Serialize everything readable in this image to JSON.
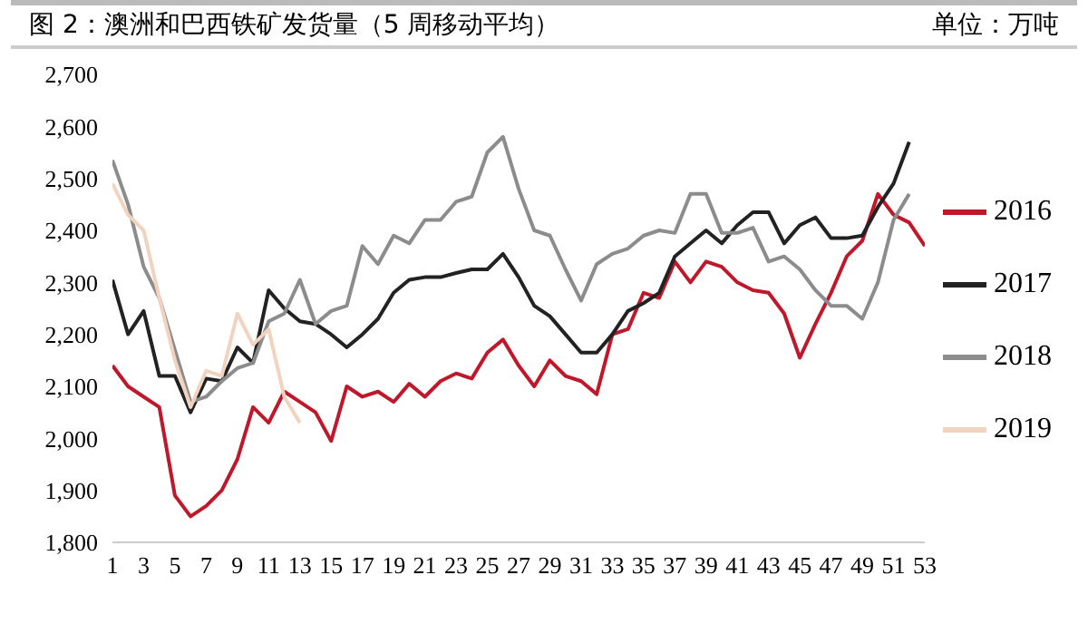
{
  "chart_data": {
    "type": "line",
    "title": "图 2：澳洲和巴西铁矿发货量（5 周移动平均）",
    "annotations": [
      "单位：万吨"
    ],
    "x": [
      1,
      2,
      3,
      4,
      5,
      6,
      7,
      8,
      9,
      10,
      11,
      12,
      13,
      14,
      15,
      16,
      17,
      18,
      19,
      20,
      21,
      22,
      23,
      24,
      25,
      26,
      27,
      28,
      29,
      30,
      31,
      32,
      33,
      34,
      35,
      36,
      37,
      38,
      39,
      40,
      41,
      42,
      43,
      44,
      45,
      46,
      47,
      48,
      49,
      50,
      51,
      52,
      53
    ],
    "xlim": [
      1,
      53
    ],
    "xticks": [
      1,
      3,
      5,
      7,
      9,
      11,
      13,
      15,
      17,
      19,
      21,
      23,
      25,
      27,
      29,
      31,
      33,
      35,
      37,
      39,
      41,
      43,
      45,
      47,
      49,
      51,
      53
    ],
    "ylim": [
      1800,
      2700
    ],
    "yticks": [
      {
        "value": 1800,
        "label": "1,800"
      },
      {
        "value": 1900,
        "label": "1,900"
      },
      {
        "value": 2000,
        "label": "2,000"
      },
      {
        "value": 2100,
        "label": "2,100"
      },
      {
        "value": 2200,
        "label": "2,200"
      },
      {
        "value": 2300,
        "label": "2,300"
      },
      {
        "value": 2400,
        "label": "2,400"
      },
      {
        "value": 2500,
        "label": "2,500"
      },
      {
        "value": 2600,
        "label": "2,600"
      },
      {
        "value": 2700,
        "label": "2,700"
      }
    ],
    "grid": false,
    "legend": "right",
    "marker": "none",
    "line_style": "solid",
    "series": [
      {
        "name": "2016",
        "color": "#c0172b",
        "values": [
          2140,
          2100,
          2080,
          2060,
          1890,
          1850,
          1870,
          1900,
          1960,
          2060,
          2030,
          2090,
          2070,
          2050,
          1995,
          2100,
          2080,
          2090,
          2070,
          2105,
          2080,
          2110,
          2125,
          2115,
          2165,
          2190,
          2140,
          2100,
          2150,
          2120,
          2110,
          2085,
          2200,
          2210,
          2280,
          2270,
          2340,
          2300,
          2340,
          2330,
          2300,
          2285,
          2280,
          2240,
          2155,
          2220,
          2280,
          2350,
          2380,
          2470,
          2430,
          2415,
          2370
        ]
      },
      {
        "name": "2017",
        "color": "#222222",
        "values": [
          2305,
          2200,
          2245,
          2120,
          2120,
          2050,
          2115,
          2110,
          2175,
          2145,
          2285,
          2250,
          2225,
          2220,
          2200,
          2175,
          2200,
          2230,
          2280,
          2305,
          2310,
          2310,
          2318,
          2325,
          2325,
          2355,
          2310,
          2255,
          2235,
          2200,
          2165,
          2165,
          2200,
          2245,
          2260,
          2280,
          2350,
          2375,
          2400,
          2375,
          2410,
          2435,
          2435,
          2375,
          2410,
          2425,
          2385,
          2385,
          2390,
          2445,
          2490,
          2570,
          null
        ]
      },
      {
        "name": "2018",
        "color": "#8c8c8c",
        "values": [
          2535,
          2450,
          2330,
          2270,
          2170,
          2070,
          2080,
          2110,
          2135,
          2145,
          2225,
          2240,
          2305,
          2220,
          2245,
          2255,
          2370,
          2335,
          2390,
          2375,
          2420,
          2420,
          2455,
          2465,
          2550,
          2580,
          2480,
          2400,
          2390,
          2325,
          2265,
          2335,
          2355,
          2365,
          2390,
          2400,
          2395,
          2470,
          2470,
          2395,
          2395,
          2405,
          2340,
          2350,
          2325,
          2285,
          2255,
          2255,
          2230,
          2300,
          2420,
          2470,
          null
        ]
      },
      {
        "name": "2019",
        "color": "#f2d3bf",
        "values": [
          2490,
          2430,
          2400,
          2270,
          2150,
          2060,
          2130,
          2120,
          2240,
          2180,
          2210,
          2080,
          2030,
          null,
          null,
          null,
          null,
          null,
          null,
          null,
          null,
          null,
          null,
          null,
          null,
          null,
          null,
          null,
          null,
          null,
          null,
          null,
          null,
          null,
          null,
          null,
          null,
          null,
          null,
          null,
          null,
          null,
          null,
          null,
          null,
          null,
          null,
          null,
          null,
          null,
          null,
          null,
          null
        ]
      }
    ]
  }
}
